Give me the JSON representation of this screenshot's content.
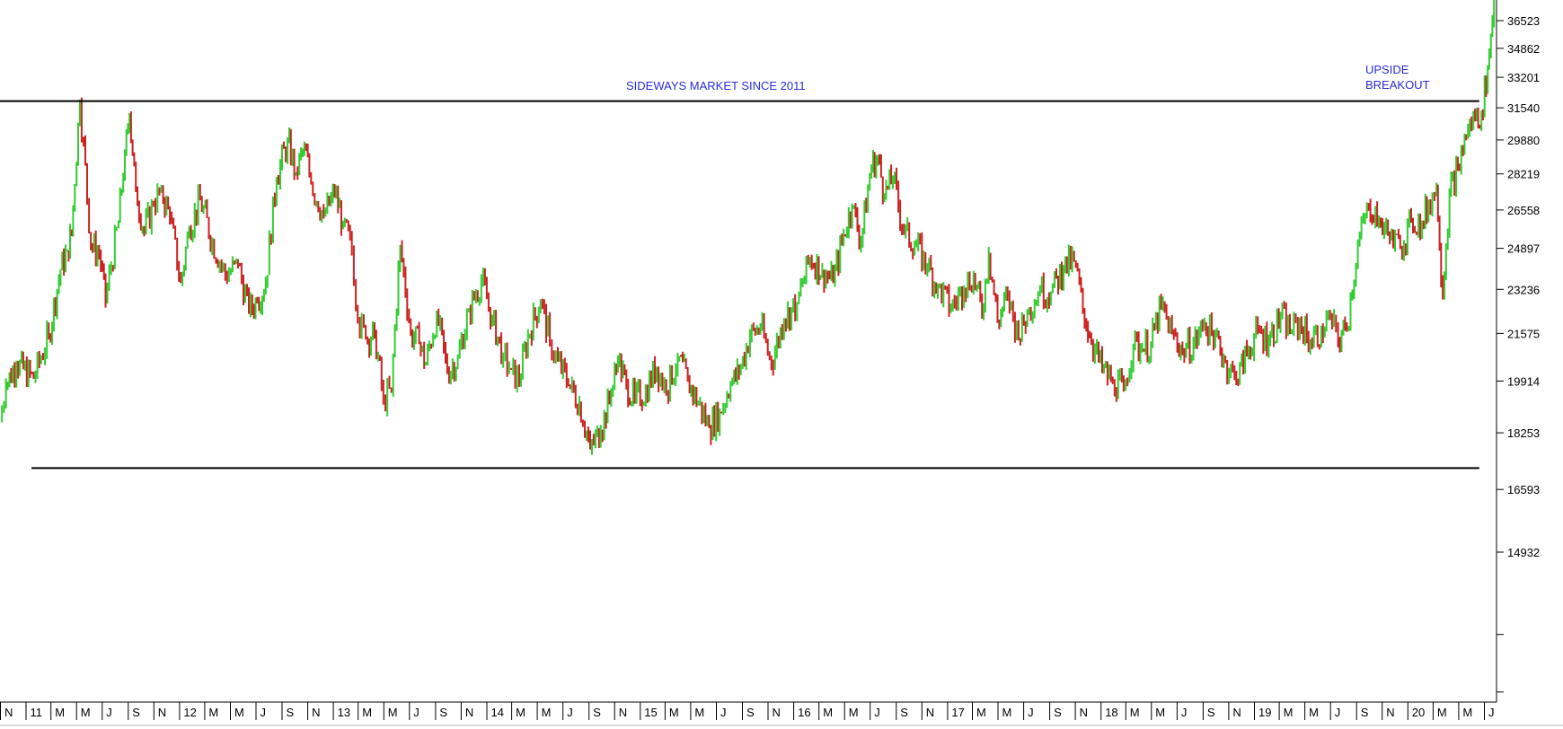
{
  "chart_data": {
    "type": "line",
    "style": "bar (OHLC) price chart, rising segments green, falling segments red",
    "y_axis": {
      "position": "right",
      "ticks": [
        14932,
        16593,
        18253,
        19914,
        21575,
        23236,
        24897,
        26558,
        28219,
        29880,
        31540,
        33201,
        34862,
        36523
      ],
      "ylim": [
        11000,
        37800
      ],
      "scale": "log"
    },
    "x_axis": {
      "labels": [
        "N",
        "11",
        "M",
        "M",
        "J",
        "S",
        "N",
        "12",
        "M",
        "M",
        "J",
        "S",
        "N",
        "13",
        "M",
        "M",
        "J",
        "S",
        "N",
        "14",
        "M",
        "M",
        "J",
        "S",
        "N",
        "15",
        "M",
        "M",
        "J",
        "S",
        "N",
        "16",
        "M",
        "M",
        "J",
        "S",
        "N",
        "17",
        "M",
        "M",
        "J",
        "S",
        "N",
        "18",
        "M",
        "M",
        "J",
        "S",
        "N",
        "19",
        "M",
        "M",
        "J",
        "S",
        "N",
        "20",
        "M",
        "M",
        "J"
      ],
      "range": [
        "2010-11-01",
        "2020-07-31"
      ]
    },
    "grid": false,
    "annotations": {
      "sideways": "SIDEWAYS MARKET SINCE 2011",
      "breakout_line1": "UPSIDE",
      "breakout_line2": "BREAKOUT"
    },
    "lines": [
      {
        "name": "resistance",
        "value": 31900,
        "from": "2010-11-01",
        "to": "2020-06-20"
      },
      {
        "name": "support",
        "value": 17200,
        "from": "2011-01-15",
        "to": "2020-06-20"
      }
    ],
    "colors": {
      "up": "#33cc33",
      "down": "#cc2222",
      "line": "#000000",
      "annotation": "#2b2bd6"
    },
    "series": [
      {
        "x": [
          "2010-11-01",
          "2010-11-15",
          "2010-12-10",
          "2011-01-20",
          "2011-02-25",
          "2011-03-25",
          "2011-04-10",
          "2011-04-20",
          "2011-05-10",
          "2011-06-05",
          "2011-06-25",
          "2011-07-10",
          "2011-08-10",
          "2011-08-25",
          "2011-09-05",
          "2011-09-20",
          "2011-10-10",
          "2011-11-01",
          "2011-11-20",
          "2011-12-10",
          "2012-01-05",
          "2012-01-25",
          "2012-02-20",
          "2012-03-20",
          "2012-04-20",
          "2012-05-20",
          "2012-06-15",
          "2012-07-05",
          "2012-07-25",
          "2012-08-20",
          "2012-09-15",
          "2012-10-05",
          "2012-10-25",
          "2012-11-10",
          "2012-12-10",
          "2013-01-05",
          "2013-01-25",
          "2013-02-15",
          "2013-03-01",
          "2013-03-20",
          "2013-04-10",
          "2013-05-01",
          "2013-05-20",
          "2013-06-10",
          "2013-07-05",
          "2013-07-25",
          "2013-08-10",
          "2013-09-05",
          "2013-09-30",
          "2013-10-25",
          "2013-11-20",
          "2013-12-20",
          "2014-01-15",
          "2014-02-10",
          "2014-03-01",
          "2014-03-20",
          "2014-04-10",
          "2014-05-10",
          "2014-06-01",
          "2014-06-20",
          "2014-07-15",
          "2014-08-10",
          "2014-09-05",
          "2014-09-30",
          "2014-10-25",
          "2014-11-10",
          "2014-11-30",
          "2014-12-20",
          "2015-01-15",
          "2015-02-10",
          "2015-03-05",
          "2015-04-01",
          "2015-04-25",
          "2015-05-20",
          "2015-06-15",
          "2015-07-10",
          "2015-08-05",
          "2015-08-25",
          "2015-09-20",
          "2015-10-15",
          "2015-11-10",
          "2015-12-10",
          "2016-01-10",
          "2016-02-10",
          "2016-03-10",
          "2016-04-05",
          "2016-04-30",
          "2016-05-20",
          "2016-06-10",
          "2016-07-05",
          "2016-07-20",
          "2016-08-05",
          "2016-08-25",
          "2016-09-20",
          "2016-10-20",
          "2016-11-15",
          "2016-12-10",
          "2017-01-10",
          "2017-02-10",
          "2017-03-05",
          "2017-03-25",
          "2017-04-10",
          "2017-05-01",
          "2017-05-25",
          "2017-06-20",
          "2017-07-15",
          "2017-08-10",
          "2017-09-05",
          "2017-10-05",
          "2017-10-30",
          "2017-11-20",
          "2017-12-10",
          "2018-01-05",
          "2018-01-30",
          "2018-02-25",
          "2018-03-20",
          "2018-04-10",
          "2018-05-01",
          "2018-05-25",
          "2018-06-20",
          "2018-07-15",
          "2018-08-10",
          "2018-09-05",
          "2018-10-01",
          "2018-10-25",
          "2018-11-20",
          "2018-12-15",
          "2019-01-10",
          "2019-02-05",
          "2019-03-05",
          "2019-04-01",
          "2019-04-20",
          "2019-05-15",
          "2019-06-10",
          "2019-07-01",
          "2019-07-20",
          "2019-08-10",
          "2019-09-05",
          "2019-10-01",
          "2019-10-25",
          "2019-11-20",
          "2019-12-15",
          "2020-01-10",
          "2020-02-05",
          "2020-02-20",
          "2020-03-10",
          "2020-03-25",
          "2020-04-10",
          "2020-04-30",
          "2020-05-20",
          "2020-06-10",
          "2020-06-25",
          "2020-07-10",
          "2020-07-25"
        ],
        "y": [
          18600,
          19800,
          20500,
          20000,
          21500,
          24000,
          24800,
          25500,
          31800,
          25000,
          24700,
          22800,
          26000,
          29200,
          31200,
          27500,
          25600,
          26800,
          27500,
          26200,
          23500,
          25700,
          27000,
          25200,
          23800,
          24200,
          22400,
          22800,
          23500,
          28000,
          29800,
          28300,
          29500,
          27800,
          26300,
          27300,
          26000,
          24800,
          22100,
          21400,
          21600,
          19300,
          19600,
          25000,
          21600,
          21200,
          20500,
          22300,
          20200,
          20700,
          22400,
          23600,
          22100,
          20800,
          20300,
          19900,
          21500,
          22800,
          21300,
          20600,
          19800,
          19200,
          17800,
          18300,
          19500,
          20600,
          19800,
          19300,
          19600,
          20400,
          19600,
          20700,
          19900,
          19200,
          18400,
          18900,
          19800,
          20200,
          21500,
          21800,
          20500,
          22100,
          22700,
          24500,
          24000,
          23500,
          25500,
          26700,
          25200,
          28600,
          29000,
          27200,
          28000,
          25600,
          25000,
          24100,
          23400,
          22500,
          23300,
          23800,
          22300,
          24700,
          22000,
          23000,
          21400,
          22500,
          23200,
          23100,
          24100,
          24400,
          22500,
          21300,
          20300,
          19900,
          19600,
          21200,
          21000,
          21200,
          22600,
          21600,
          21000,
          21200,
          21900,
          21500,
          20600,
          19900,
          20900,
          21700,
          21300,
          22200,
          21600,
          22000,
          21200,
          21700,
          22200,
          21300,
          21800,
          25000,
          26800,
          26200,
          25300,
          24900,
          26100,
          26000,
          26800,
          27700,
          23000,
          27300,
          28500,
          30100,
          31100,
          31200,
          33800,
          37800
        ]
      }
    ]
  }
}
